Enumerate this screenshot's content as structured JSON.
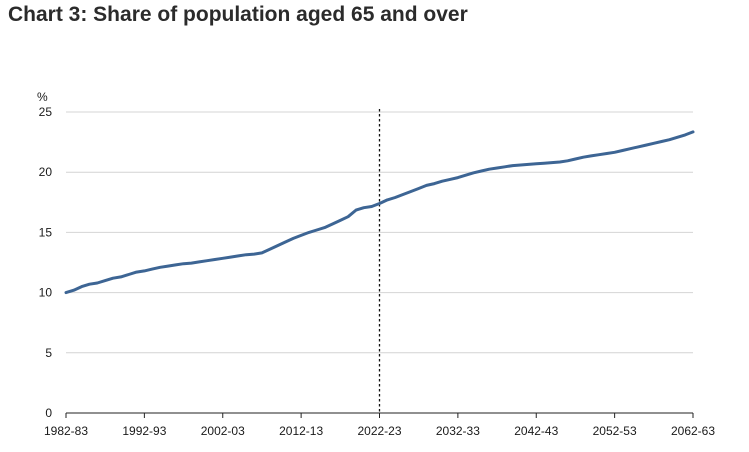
{
  "title": "Chart 3: Share of population aged 65 and over",
  "chart_data": {
    "type": "line",
    "title": "Chart 3: Share of population aged 65 and over",
    "xlabel": "",
    "ylabel": "%",
    "ylim": [
      0,
      25
    ],
    "yticks": [
      0,
      5,
      10,
      15,
      20,
      25
    ],
    "grid": true,
    "xticks": [
      "1982-83",
      "1992-93",
      "2002-03",
      "2012-13",
      "2022-23",
      "2032-33",
      "2042-43",
      "2052-53",
      "2062-63"
    ],
    "x": [
      "1982-83",
      "1983-84",
      "1984-85",
      "1985-86",
      "1986-87",
      "1987-88",
      "1988-89",
      "1989-90",
      "1990-91",
      "1991-92",
      "1992-93",
      "1993-94",
      "1994-95",
      "1995-96",
      "1996-97",
      "1997-98",
      "1998-99",
      "1999-00",
      "2000-01",
      "2001-02",
      "2002-03",
      "2003-04",
      "2004-05",
      "2005-06",
      "2006-07",
      "2007-08",
      "2008-09",
      "2009-10",
      "2010-11",
      "2011-12",
      "2012-13",
      "2013-14",
      "2014-15",
      "2015-16",
      "2016-17",
      "2017-18",
      "2018-19",
      "2019-20",
      "2020-21",
      "2021-22",
      "2022-23",
      "2023-24",
      "2024-25",
      "2025-26",
      "2026-27",
      "2027-28",
      "2028-29",
      "2029-30",
      "2030-31",
      "2031-32",
      "2032-33",
      "2033-34",
      "2034-35",
      "2035-36",
      "2036-37",
      "2037-38",
      "2038-39",
      "2039-40",
      "2040-41",
      "2041-42",
      "2042-43",
      "2043-44",
      "2044-45",
      "2045-46",
      "2046-47",
      "2047-48",
      "2048-49",
      "2049-50",
      "2050-51",
      "2051-52",
      "2052-53",
      "2053-54",
      "2054-55",
      "2055-56",
      "2056-57",
      "2057-58",
      "2058-59",
      "2059-60",
      "2060-61",
      "2061-62",
      "2062-63"
    ],
    "series": [
      {
        "values": [
          10.0,
          10.2,
          10.5,
          10.7,
          10.8,
          11.0,
          11.2,
          11.3,
          11.5,
          11.7,
          11.8,
          11.95,
          12.1,
          12.2,
          12.3,
          12.4,
          12.45,
          12.55,
          12.65,
          12.75,
          12.85,
          12.95,
          13.05,
          13.15,
          13.2,
          13.3,
          13.6,
          13.9,
          14.2,
          14.5,
          14.75,
          15.0,
          15.2,
          15.4,
          15.7,
          16.0,
          16.3,
          16.85,
          17.05,
          17.15,
          17.4,
          17.7,
          17.9,
          18.15,
          18.4,
          18.65,
          18.9,
          19.05,
          19.25,
          19.4,
          19.55,
          19.75,
          19.95,
          20.1,
          20.25,
          20.35,
          20.45,
          20.55,
          20.6,
          20.65,
          20.7,
          20.75,
          20.8,
          20.85,
          20.95,
          21.1,
          21.25,
          21.35,
          21.45,
          21.55,
          21.65,
          21.8,
          21.95,
          22.1,
          22.25,
          22.4,
          22.55,
          22.7,
          22.9,
          23.1,
          23.35
        ]
      }
    ],
    "marker": {
      "x": "2022-23",
      "style": "dotted"
    },
    "colors": {
      "line": "#3d6594",
      "grid": "#d4d4d4",
      "axis": "#222222",
      "marker": "#111111"
    }
  }
}
